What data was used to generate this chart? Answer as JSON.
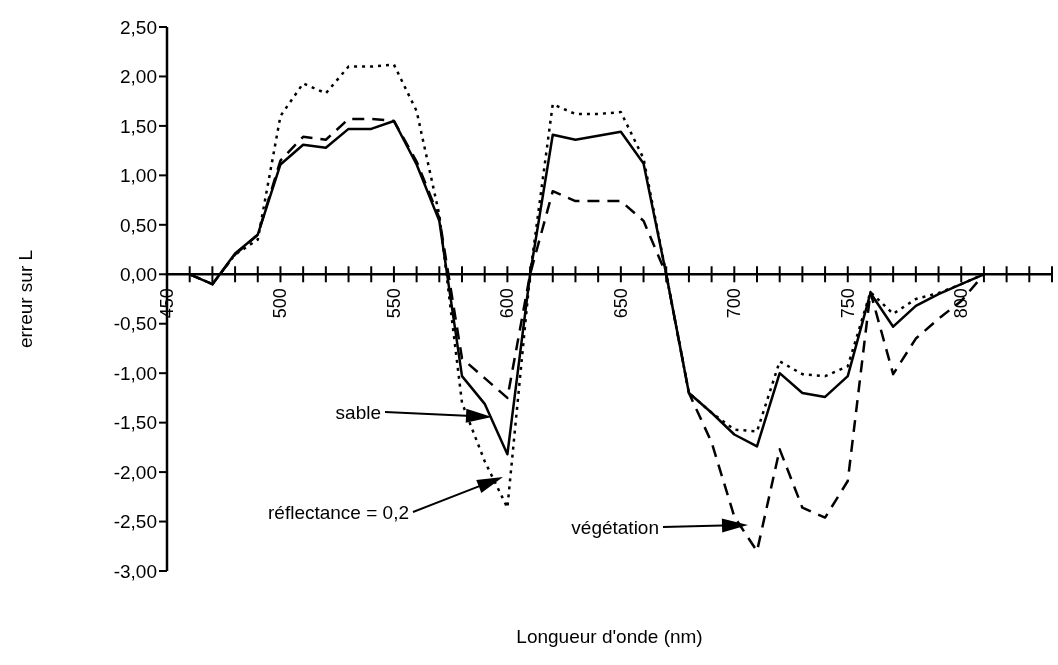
{
  "chart_data": {
    "type": "line",
    "xlabel": "Longueur d'onde (nm)",
    "ylabel": "erreur sur L",
    "x": [
      460,
      470,
      480,
      490,
      500,
      510,
      520,
      530,
      540,
      550,
      560,
      570,
      580,
      590,
      600,
      610,
      620,
      630,
      640,
      650,
      660,
      670,
      680,
      690,
      700,
      710,
      720,
      730,
      740,
      750,
      760,
      770,
      780,
      790,
      800,
      810
    ],
    "series": [
      {
        "color": "#000000",
        "line_style": "solid",
        "values": [
          0,
          -0.1,
          0.21,
          0.4,
          1.11,
          1.31,
          1.28,
          1.47,
          1.47,
          1.55,
          1.11,
          0.54,
          -1.03,
          -1.31,
          -1.82,
          0,
          1.41,
          1.36,
          1.4,
          1.44,
          1.12,
          0,
          -1.2,
          -1.4,
          -1.62,
          -1.74,
          -1.0,
          -1.2,
          -1.24,
          -1.03,
          -0.19,
          -0.53,
          -0.32,
          -0.2,
          -0.1,
          0
        ]
      },
      {
        "color": "#000000",
        "line_style": "dotted",
        "values": [
          0,
          -0.1,
          0.2,
          0.35,
          1.6,
          1.93,
          1.83,
          2.1,
          2.1,
          2.12,
          1.65,
          0.6,
          -1.3,
          -1.89,
          -2.36,
          0,
          1.72,
          1.62,
          1.62,
          1.64,
          1.17,
          0,
          -1.2,
          -1.4,
          -1.57,
          -1.59,
          -0.88,
          -1.01,
          -1.03,
          -0.93,
          -0.18,
          -0.4,
          -0.25,
          -0.19,
          -0.1,
          0
        ]
      },
      {
        "color": "#000000",
        "line_style": "dashed",
        "values": [
          0,
          -0.1,
          0.2,
          0.4,
          1.15,
          1.39,
          1.36,
          1.57,
          1.57,
          1.55,
          1.14,
          0.57,
          -0.85,
          -1.05,
          -1.25,
          0,
          0.84,
          0.74,
          0.74,
          0.74,
          0.54,
          0,
          -1.2,
          -1.7,
          -2.45,
          -2.8,
          -1.77,
          -2.36,
          -2.46,
          -2.09,
          -0.18,
          -1.01,
          -0.65,
          -0.45,
          -0.27,
          0
        ]
      }
    ],
    "xlim": [
      450,
      840
    ],
    "xticks": [
      {
        "value": 450,
        "label": "450"
      },
      {
        "value": 460,
        "label": null
      },
      {
        "value": 470,
        "label": null
      },
      {
        "value": 480,
        "label": null
      },
      {
        "value": 490,
        "label": null
      },
      {
        "value": 500,
        "label": "500"
      },
      {
        "value": 510,
        "label": null
      },
      {
        "value": 520,
        "label": null
      },
      {
        "value": 530,
        "label": null
      },
      {
        "value": 540,
        "label": null
      },
      {
        "value": 550,
        "label": "550"
      },
      {
        "value": 560,
        "label": null
      },
      {
        "value": 570,
        "label": null
      },
      {
        "value": 580,
        "label": null
      },
      {
        "value": 590,
        "label": null
      },
      {
        "value": 600,
        "label": "600"
      },
      {
        "value": 610,
        "label": null
      },
      {
        "value": 620,
        "label": null
      },
      {
        "value": 630,
        "label": null
      },
      {
        "value": 640,
        "label": null
      },
      {
        "value": 650,
        "label": "650"
      },
      {
        "value": 660,
        "label": null
      },
      {
        "value": 670,
        "label": null
      },
      {
        "value": 680,
        "label": null
      },
      {
        "value": 690,
        "label": null
      },
      {
        "value": 700,
        "label": "700"
      },
      {
        "value": 710,
        "label": null
      },
      {
        "value": 720,
        "label": null
      },
      {
        "value": 730,
        "label": null
      },
      {
        "value": 740,
        "label": null
      },
      {
        "value": 750,
        "label": "750"
      },
      {
        "value": 760,
        "label": null
      },
      {
        "value": 770,
        "label": null
      },
      {
        "value": 780,
        "label": null
      },
      {
        "value": 790,
        "label": null
      },
      {
        "value": 800,
        "label": "800"
      },
      {
        "value": 810,
        "label": null
      },
      {
        "value": 820,
        "label": null
      },
      {
        "value": 830,
        "label": null
      },
      {
        "value": 840,
        "label": null
      }
    ],
    "ylim": [
      -3,
      2.5
    ],
    "yticks": [
      {
        "value": 2.5,
        "label": "2,50"
      },
      {
        "value": 2,
        "label": "2,00"
      },
      {
        "value": 1.5,
        "label": "1,50"
      },
      {
        "value": 1,
        "label": "1,00"
      },
      {
        "value": 0.5,
        "label": "0,50"
      },
      {
        "value": 0,
        "label": "0,00"
      },
      {
        "value": -0.5,
        "label": "-0,50"
      },
      {
        "value": -1,
        "label": "-1,00"
      },
      {
        "value": -1.5,
        "label": "-1,50"
      },
      {
        "value": -2,
        "label": "-2,00"
      },
      {
        "value": -2.5,
        "label": "-2,50"
      },
      {
        "value": -3,
        "label": "-3,00"
      }
    ],
    "grid": false,
    "legend": false,
    "marker": "none",
    "annotations": [
      "sable",
      "réflectance = 0,2",
      "végétation"
    ]
  }
}
